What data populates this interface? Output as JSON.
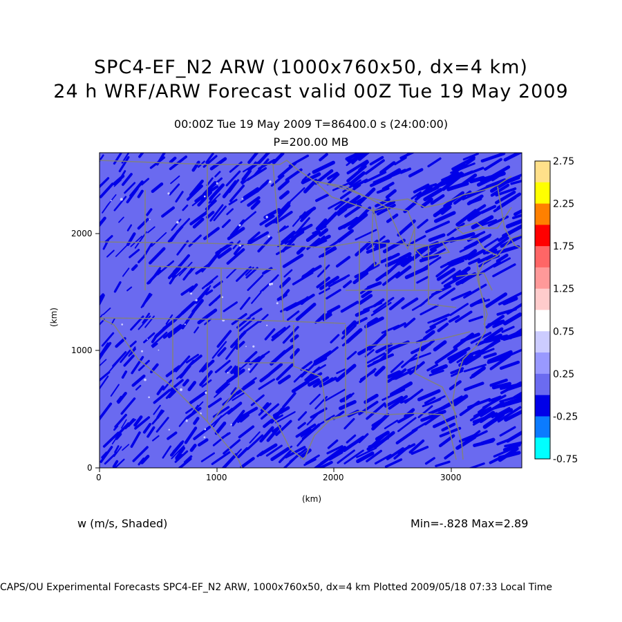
{
  "titles": {
    "line1": "SPC4-EF_N2 ARW (1000x760x50, dx=4 km)",
    "line2": "24 h WRF/ARW Forecast valid 00Z Tue 19 May 2009",
    "time": "00:00Z Tue 19 May 2009     T=86400.0 s (24:00:00)",
    "level": "P=200.00 MB"
  },
  "axes": {
    "xlabel": "(km)",
    "ylabel": "(km)",
    "xticks": [
      "0",
      "1000",
      "2000",
      "3000"
    ],
    "yticks": [
      "0",
      "1000",
      "2000"
    ]
  },
  "variable": "w (m/s, Shaded)",
  "minmax": "Min=-.828 Max=2.89",
  "footer": "CAPS/OU Experimental Forecasts  SPC4-EF_N2 ARW, 1000x760x50, dx=4 km  Plotted 2009/05/18 07:33 Local Time",
  "colorbar": {
    "labels": [
      "2.75",
      "2.25",
      "1.75",
      "1.25",
      "0.75",
      "0.25",
      "-0.25",
      "-0.75"
    ],
    "colors": [
      "#FFE08A",
      "#FFFF00",
      "#FF8000",
      "#FF0000",
      "#FF6666",
      "#FF9999",
      "#FFCCCC",
      "#FFFFFF",
      "#CCCCFF",
      "#9999FF",
      "#6B6BF0",
      "#0000E8",
      "#0B7BFF",
      "#00FFFF"
    ]
  },
  "map": {
    "background": "#6A6AF0",
    "strong_down": "#0000E8",
    "boundary": "#808080"
  }
}
